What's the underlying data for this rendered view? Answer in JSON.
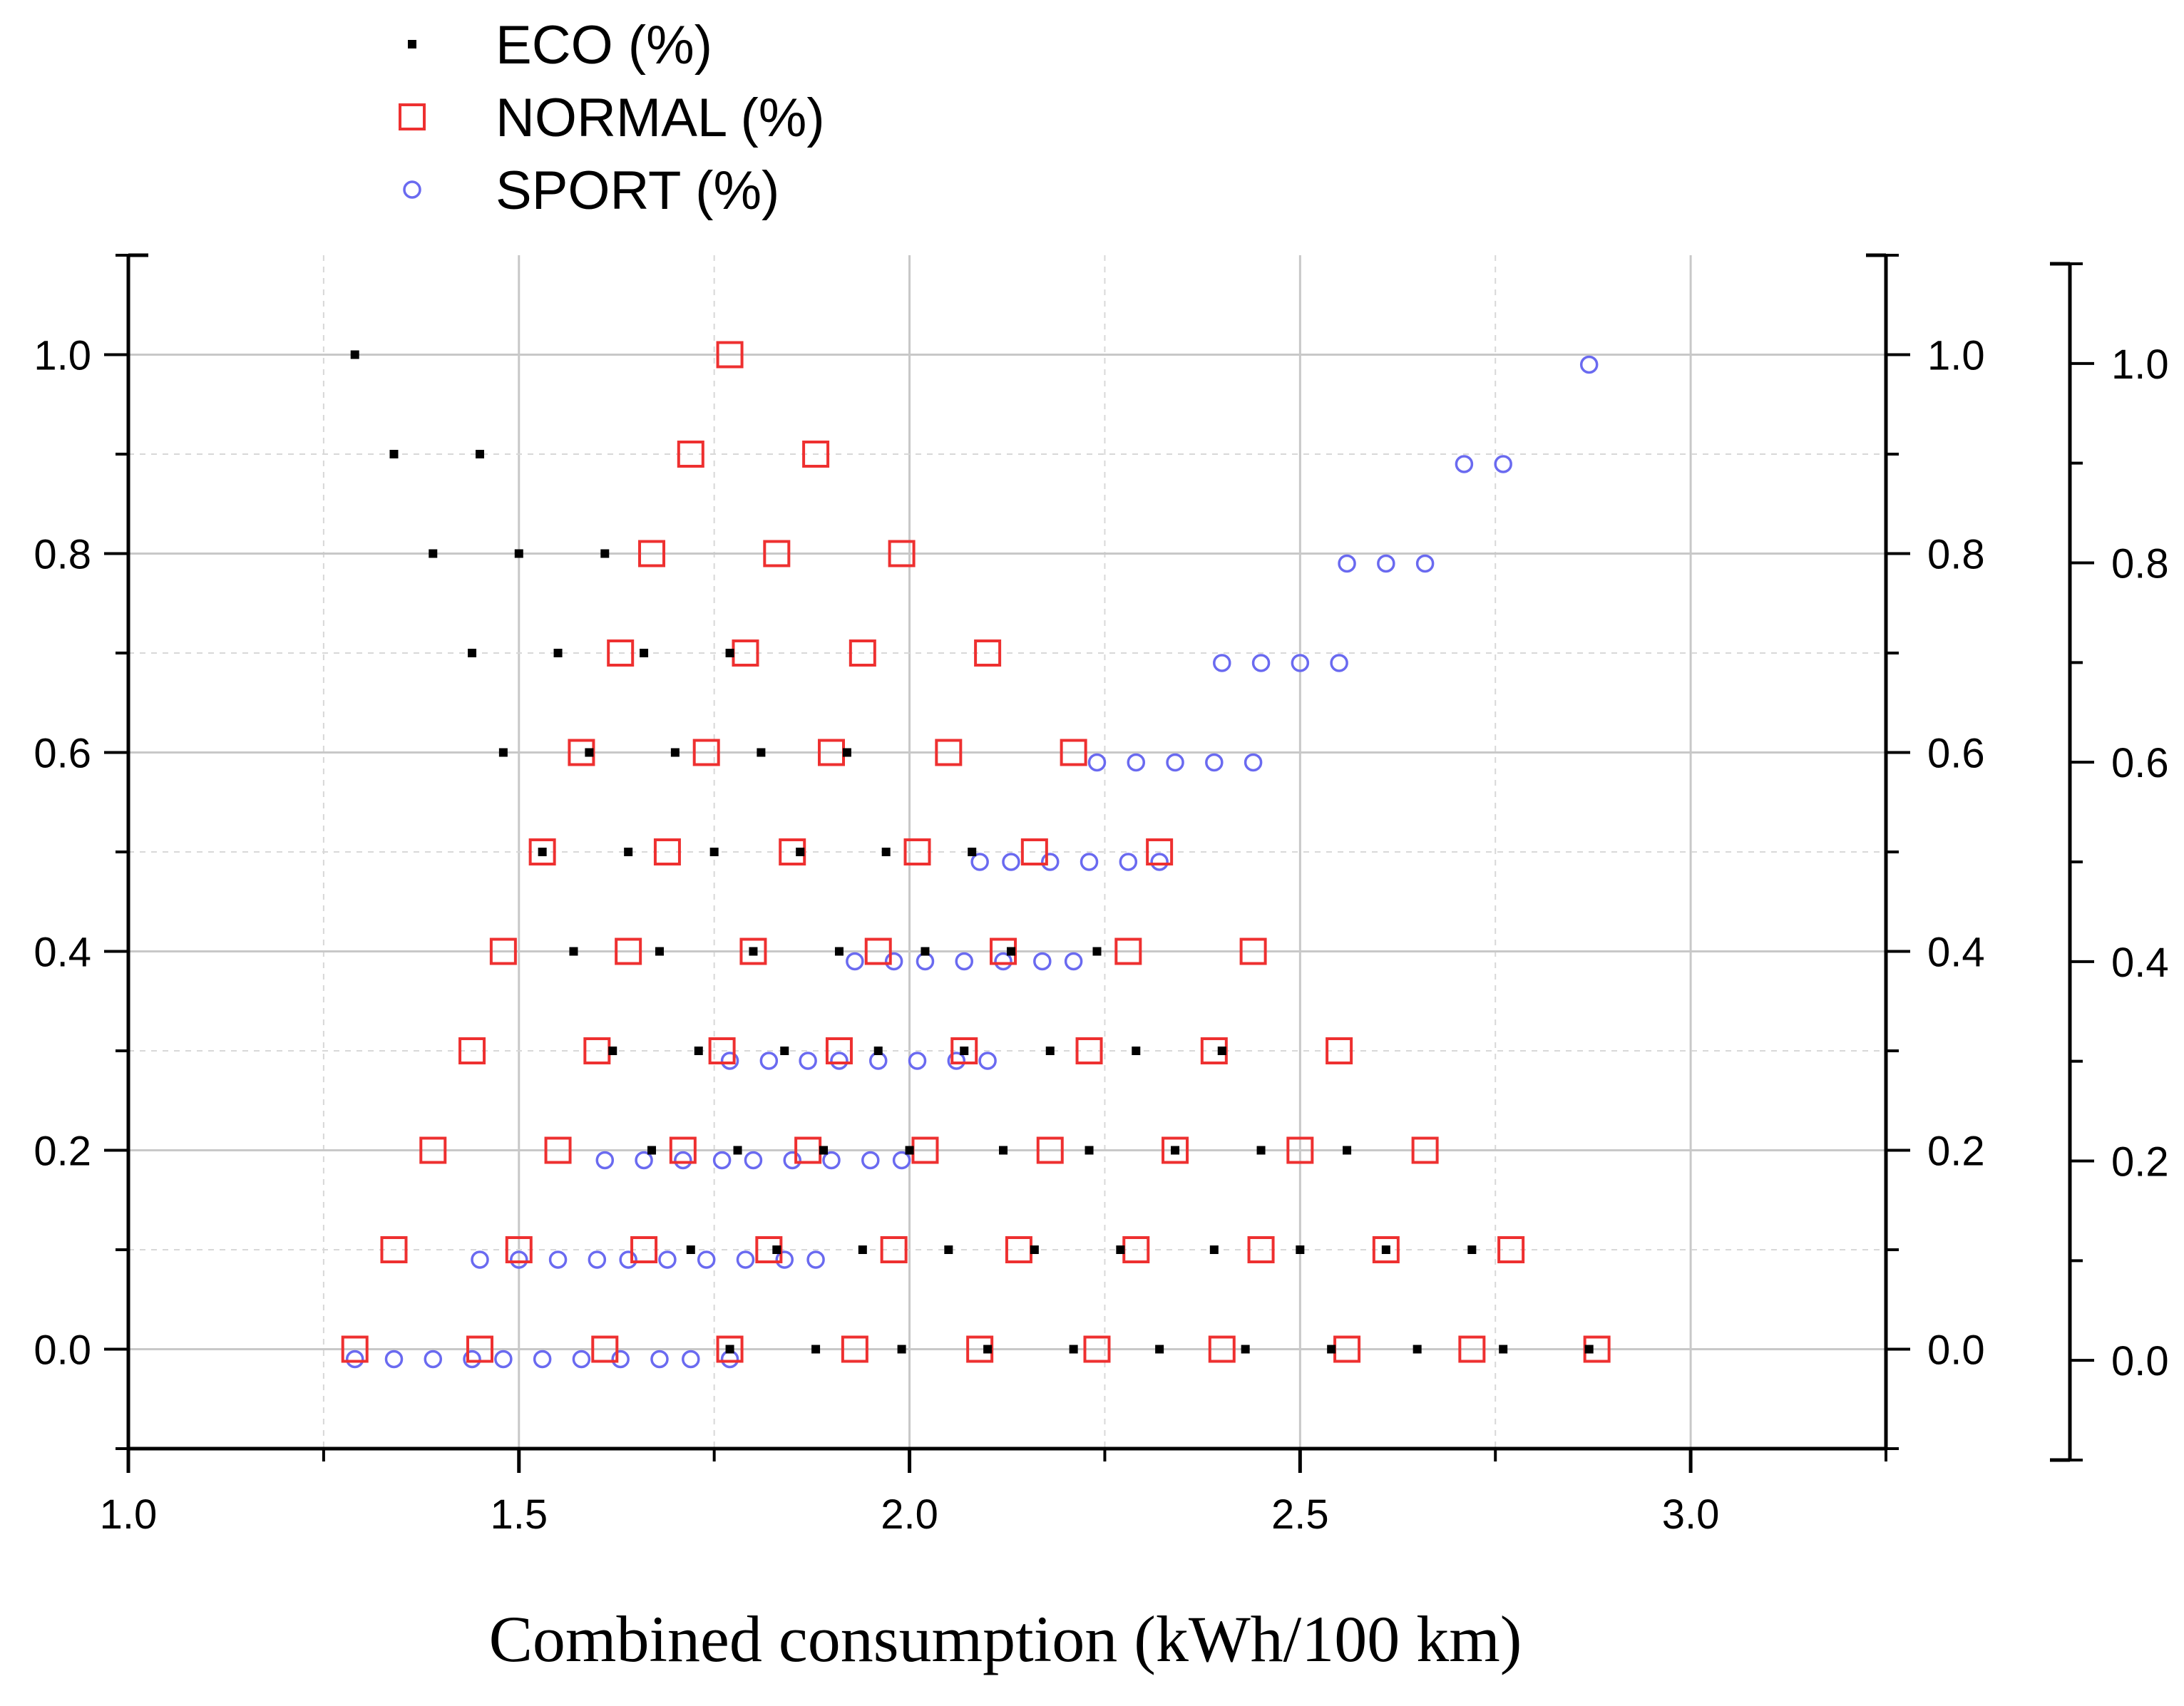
{
  "chart_data": {
    "type": "scatter",
    "title": "",
    "xlabel": "Combined consumption (kWh/100 km)",
    "ylabel": "",
    "xlim": [
      1.0,
      3.25
    ],
    "ylim": [
      -0.1,
      1.1
    ],
    "x_ticks": [
      "1.0",
      "1.5",
      "2.0",
      "2.5",
      "3.0"
    ],
    "y_ticks": [
      "0.0",
      "0.2",
      "0.4",
      "0.6",
      "0.8",
      "1.0"
    ],
    "grid": true,
    "legend_position": "top-left, above plot",
    "series": [
      {
        "name": "ECO (%)",
        "marker": "small-filled-square",
        "color": "#000000",
        "points": [
          [
            1.29,
            1.0
          ],
          [
            1.34,
            0.9
          ],
          [
            1.45,
            0.9
          ],
          [
            1.39,
            0.8
          ],
          [
            1.5,
            0.8
          ],
          [
            1.61,
            0.8
          ],
          [
            1.44,
            0.7
          ],
          [
            1.55,
            0.7
          ],
          [
            1.66,
            0.7
          ],
          [
            1.77,
            0.7
          ],
          [
            1.48,
            0.6
          ],
          [
            1.59,
            0.6
          ],
          [
            1.7,
            0.6
          ],
          [
            1.81,
            0.6
          ],
          [
            1.92,
            0.6
          ],
          [
            1.53,
            0.5
          ],
          [
            1.64,
            0.5
          ],
          [
            1.75,
            0.5
          ],
          [
            1.86,
            0.5
          ],
          [
            1.97,
            0.5
          ],
          [
            2.08,
            0.5
          ],
          [
            1.57,
            0.4
          ],
          [
            1.68,
            0.4
          ],
          [
            1.8,
            0.4
          ],
          [
            1.91,
            0.4
          ],
          [
            2.02,
            0.4
          ],
          [
            2.13,
            0.4
          ],
          [
            2.24,
            0.4
          ],
          [
            1.62,
            0.3
          ],
          [
            1.73,
            0.3
          ],
          [
            1.84,
            0.3
          ],
          [
            1.96,
            0.3
          ],
          [
            2.07,
            0.3
          ],
          [
            2.18,
            0.3
          ],
          [
            2.29,
            0.3
          ],
          [
            2.4,
            0.3
          ],
          [
            1.67,
            0.2
          ],
          [
            1.78,
            0.2
          ],
          [
            1.89,
            0.2
          ],
          [
            2.0,
            0.2
          ],
          [
            2.12,
            0.2
          ],
          [
            2.23,
            0.2
          ],
          [
            2.34,
            0.2
          ],
          [
            2.45,
            0.2
          ],
          [
            2.56,
            0.2
          ],
          [
            1.72,
            0.1
          ],
          [
            1.83,
            0.1
          ],
          [
            1.94,
            0.1
          ],
          [
            2.05,
            0.1
          ],
          [
            2.16,
            0.1
          ],
          [
            2.27,
            0.1
          ],
          [
            2.39,
            0.1
          ],
          [
            2.5,
            0.1
          ],
          [
            2.61,
            0.1
          ],
          [
            2.72,
            0.1
          ],
          [
            1.77,
            0.0
          ],
          [
            1.88,
            0.0
          ],
          [
            1.99,
            0.0
          ],
          [
            2.1,
            0.0
          ],
          [
            2.21,
            0.0
          ],
          [
            2.32,
            0.0
          ],
          [
            2.43,
            0.0
          ],
          [
            2.54,
            0.0
          ],
          [
            2.65,
            0.0
          ],
          [
            2.76,
            0.0
          ],
          [
            2.87,
            0.0
          ]
        ]
      },
      {
        "name": "NORMAL (%)",
        "marker": "open-square",
        "color": "#ee3030",
        "points": [
          [
            1.77,
            1.0
          ],
          [
            1.72,
            0.9
          ],
          [
            1.88,
            0.9
          ],
          [
            1.67,
            0.8
          ],
          [
            1.83,
            0.8
          ],
          [
            1.99,
            0.8
          ],
          [
            1.63,
            0.7
          ],
          [
            1.79,
            0.7
          ],
          [
            1.94,
            0.7
          ],
          [
            2.1,
            0.7
          ],
          [
            1.58,
            0.6
          ],
          [
            1.74,
            0.6
          ],
          [
            1.9,
            0.6
          ],
          [
            2.05,
            0.6
          ],
          [
            2.21,
            0.6
          ],
          [
            1.53,
            0.5
          ],
          [
            1.69,
            0.5
          ],
          [
            1.85,
            0.5
          ],
          [
            2.01,
            0.5
          ],
          [
            2.16,
            0.5
          ],
          [
            2.32,
            0.5
          ],
          [
            1.48,
            0.4
          ],
          [
            1.64,
            0.4
          ],
          [
            1.8,
            0.4
          ],
          [
            1.96,
            0.4
          ],
          [
            2.12,
            0.4
          ],
          [
            2.28,
            0.4
          ],
          [
            2.44,
            0.4
          ],
          [
            1.44,
            0.3
          ],
          [
            1.6,
            0.3
          ],
          [
            1.76,
            0.3
          ],
          [
            1.91,
            0.3
          ],
          [
            2.07,
            0.3
          ],
          [
            2.23,
            0.3
          ],
          [
            2.39,
            0.3
          ],
          [
            2.55,
            0.3
          ],
          [
            1.39,
            0.2
          ],
          [
            1.55,
            0.2
          ],
          [
            1.71,
            0.2
          ],
          [
            1.87,
            0.2
          ],
          [
            2.02,
            0.2
          ],
          [
            2.18,
            0.2
          ],
          [
            2.34,
            0.2
          ],
          [
            2.5,
            0.2
          ],
          [
            2.66,
            0.2
          ],
          [
            1.34,
            0.1
          ],
          [
            1.5,
            0.1
          ],
          [
            1.66,
            0.1
          ],
          [
            1.82,
            0.1
          ],
          [
            1.98,
            0.1
          ],
          [
            2.14,
            0.1
          ],
          [
            2.29,
            0.1
          ],
          [
            2.45,
            0.1
          ],
          [
            2.61,
            0.1
          ],
          [
            2.77,
            0.1
          ],
          [
            1.29,
            0.0
          ],
          [
            1.45,
            0.0
          ],
          [
            1.61,
            0.0
          ],
          [
            1.77,
            0.0
          ],
          [
            1.93,
            0.0
          ],
          [
            2.09,
            0.0
          ],
          [
            2.24,
            0.0
          ],
          [
            2.4,
            0.0
          ],
          [
            2.56,
            0.0
          ],
          [
            2.72,
            0.0
          ],
          [
            2.88,
            0.0
          ]
        ]
      },
      {
        "name": "SPORT (%)",
        "marker": "open-circle",
        "color": "#6a6af0",
        "points": [
          [
            2.87,
            0.99
          ],
          [
            2.71,
            0.89
          ],
          [
            2.76,
            0.89
          ],
          [
            2.56,
            0.79
          ],
          [
            2.61,
            0.79
          ],
          [
            2.66,
            0.79
          ],
          [
            2.4,
            0.69
          ],
          [
            2.45,
            0.69
          ],
          [
            2.5,
            0.69
          ],
          [
            2.55,
            0.69
          ],
          [
            2.24,
            0.59
          ],
          [
            2.29,
            0.59
          ],
          [
            2.34,
            0.59
          ],
          [
            2.39,
            0.59
          ],
          [
            2.44,
            0.59
          ],
          [
            2.09,
            0.49
          ],
          [
            2.13,
            0.49
          ],
          [
            2.18,
            0.49
          ],
          [
            2.23,
            0.49
          ],
          [
            2.28,
            0.49
          ],
          [
            2.32,
            0.49
          ],
          [
            1.93,
            0.39
          ],
          [
            1.98,
            0.39
          ],
          [
            2.02,
            0.39
          ],
          [
            2.07,
            0.39
          ],
          [
            2.12,
            0.39
          ],
          [
            2.17,
            0.39
          ],
          [
            2.21,
            0.39
          ],
          [
            1.77,
            0.29
          ],
          [
            1.82,
            0.29
          ],
          [
            1.87,
            0.29
          ],
          [
            1.91,
            0.29
          ],
          [
            1.96,
            0.29
          ],
          [
            2.01,
            0.29
          ],
          [
            2.06,
            0.29
          ],
          [
            2.1,
            0.29
          ],
          [
            1.61,
            0.19
          ],
          [
            1.66,
            0.19
          ],
          [
            1.71,
            0.19
          ],
          [
            1.76,
            0.19
          ],
          [
            1.8,
            0.19
          ],
          [
            1.85,
            0.19
          ],
          [
            1.9,
            0.19
          ],
          [
            1.95,
            0.19
          ],
          [
            1.99,
            0.19
          ],
          [
            1.45,
            0.09
          ],
          [
            1.5,
            0.09
          ],
          [
            1.55,
            0.09
          ],
          [
            1.6,
            0.09
          ],
          [
            1.64,
            0.09
          ],
          [
            1.69,
            0.09
          ],
          [
            1.74,
            0.09
          ],
          [
            1.79,
            0.09
          ],
          [
            1.84,
            0.09
          ],
          [
            1.88,
            0.09
          ],
          [
            1.29,
            -0.01
          ],
          [
            1.34,
            -0.01
          ],
          [
            1.39,
            -0.01
          ],
          [
            1.44,
            -0.01
          ],
          [
            1.48,
            -0.01
          ],
          [
            1.53,
            -0.01
          ],
          [
            1.58,
            -0.01
          ],
          [
            1.63,
            -0.01
          ],
          [
            1.68,
            -0.01
          ],
          [
            1.72,
            -0.01
          ],
          [
            1.77,
            -0.01
          ]
        ]
      }
    ]
  }
}
